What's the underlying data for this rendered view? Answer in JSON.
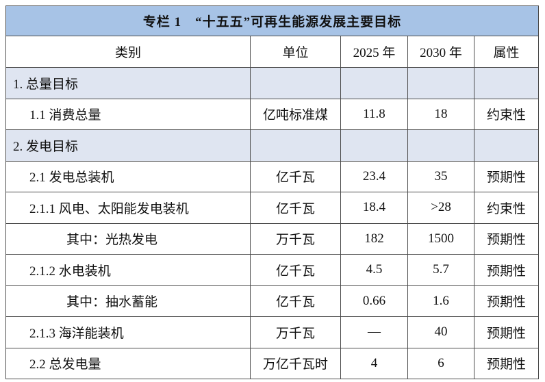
{
  "table": {
    "title": "专栏 1　“十五五”可再生能源发展主要目标",
    "header": [
      "类别",
      "单位",
      "2025 年",
      "2030 年",
      "属性"
    ],
    "rows": [
      [
        "1. 总量目标"
      ],
      [
        "1.1  消费总量",
        "亿吨标准煤",
        "11.8",
        "18",
        "约束性"
      ],
      [
        "2. 发电目标"
      ],
      [
        "2.1  发电总装机",
        "亿千瓦",
        "23.4",
        "35",
        "预期性"
      ],
      [
        "2.1.1  风电、太阳能发电装机",
        "亿千瓦",
        "18.4",
        ">28",
        "约束性"
      ],
      [
        "其中：光热发电",
        "万千瓦",
        "182",
        "1500",
        "预期性"
      ],
      [
        "2.1.2  水电装机",
        "亿千瓦",
        "4.5",
        "5.7",
        "预期性"
      ],
      [
        "其中：抽水蓄能",
        "亿千瓦",
        "0.66",
        "1.6",
        "预期性"
      ],
      [
        "2.1.3  海洋能装机",
        "万千瓦",
        "—",
        "40",
        "预期性"
      ],
      [
        "2.2  总发电量",
        "万亿千瓦时",
        "4",
        "6",
        "预期性"
      ]
    ]
  }
}
